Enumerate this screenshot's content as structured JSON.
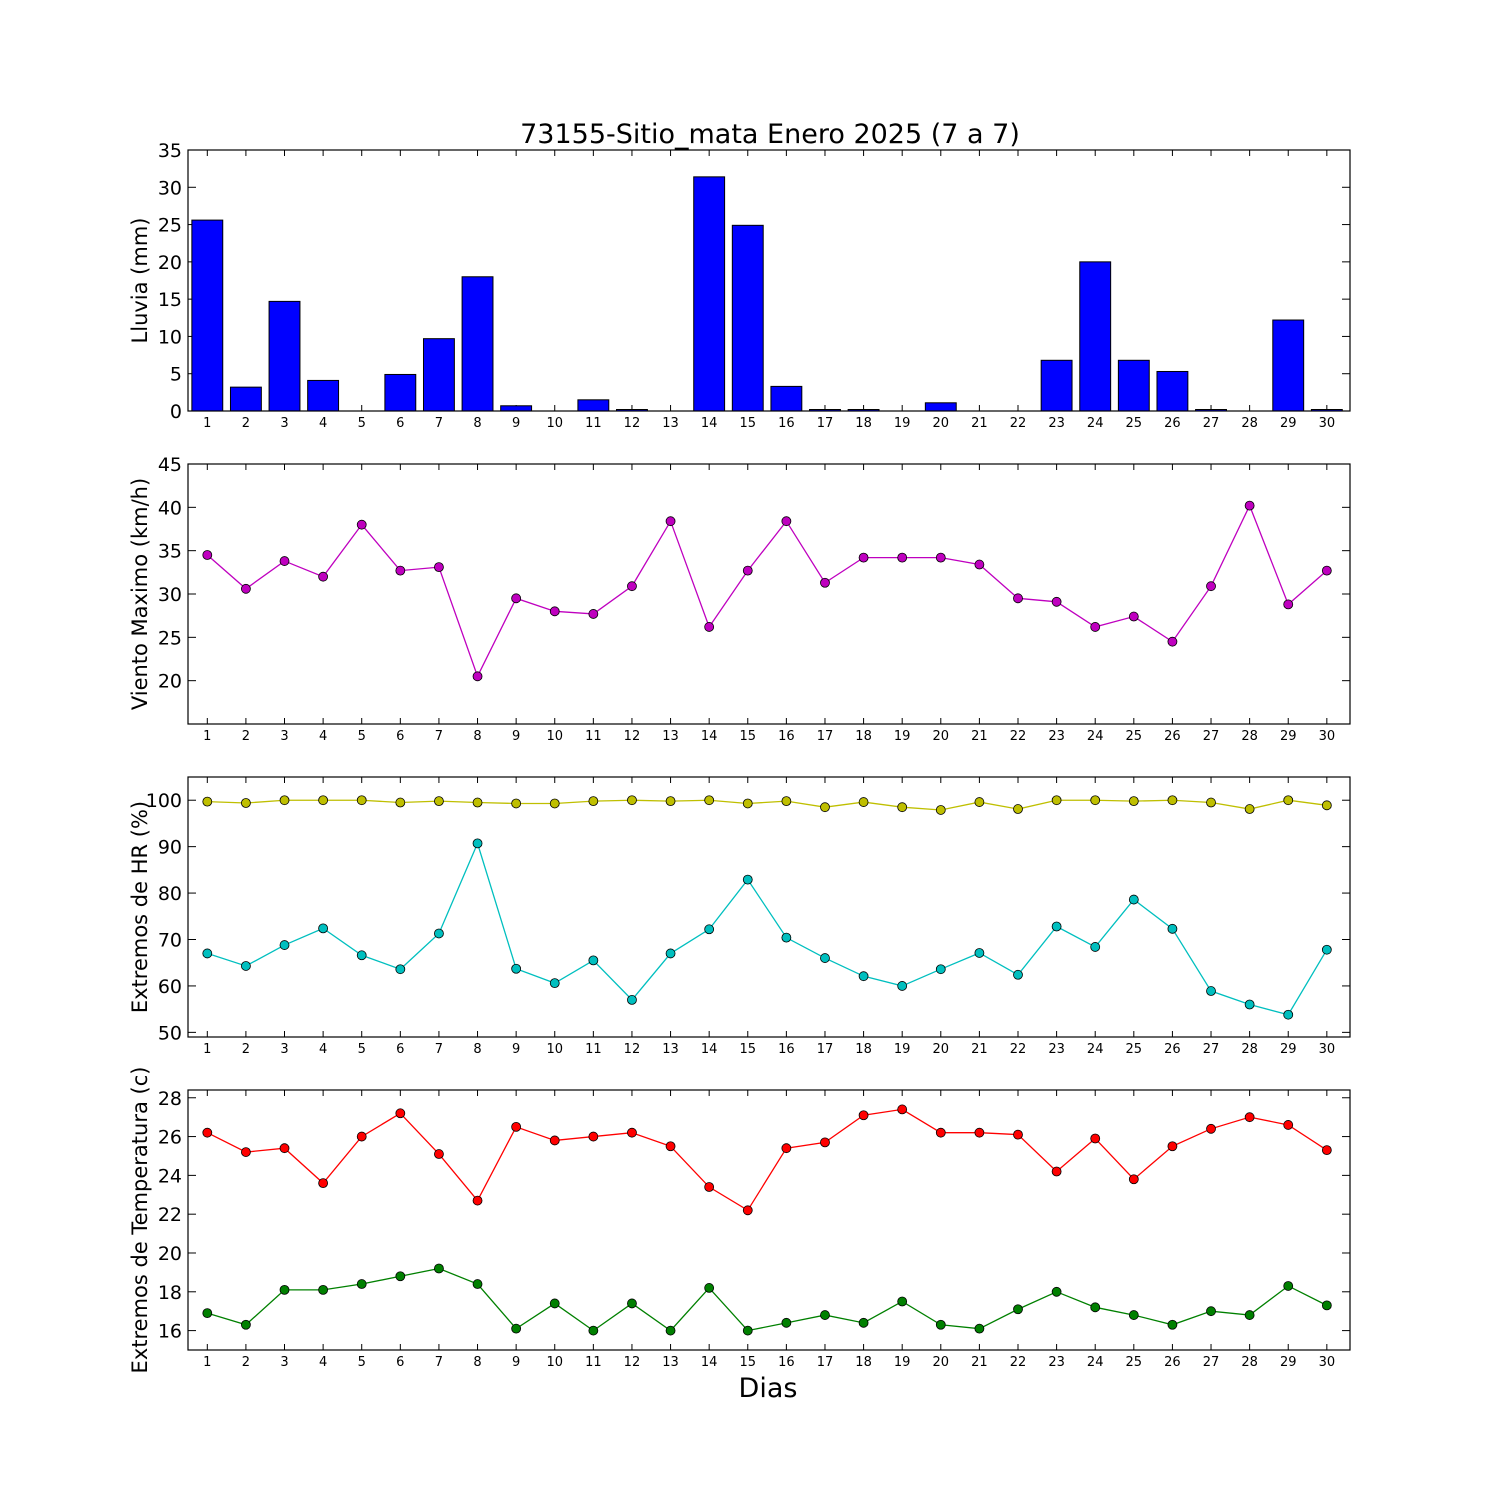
{
  "title": "73155-Sitio_mata Enero 2025  (7 a 7)",
  "xlabel": "Dias",
  "chart_data": [
    {
      "type": "bar",
      "ylabel": "Lluvia (mm)",
      "ylim": [
        0,
        35
      ],
      "yticks": [
        0,
        5,
        10,
        15,
        20,
        25,
        30,
        35
      ],
      "categories": [
        1,
        2,
        3,
        4,
        5,
        6,
        7,
        8,
        9,
        10,
        11,
        12,
        13,
        14,
        15,
        16,
        17,
        18,
        19,
        20,
        21,
        22,
        23,
        24,
        25,
        26,
        27,
        28,
        29,
        30
      ],
      "series": [
        {
          "color": "#0000ff",
          "values": [
            25.6,
            3.2,
            14.7,
            4.1,
            0,
            4.9,
            9.7,
            18.0,
            0.7,
            0,
            1.5,
            0.2,
            0,
            31.4,
            24.9,
            3.3,
            0.2,
            0.2,
            0,
            1.1,
            0,
            0,
            6.8,
            20.0,
            6.8,
            5.3,
            0.2,
            0,
            12.2,
            0.2
          ]
        }
      ]
    },
    {
      "type": "line",
      "ylabel": "Viento Maximo (km/h)",
      "ylim": [
        15,
        45
      ],
      "yticks": [
        20,
        25,
        30,
        35,
        40,
        45
      ],
      "categories": [
        1,
        2,
        3,
        4,
        5,
        6,
        7,
        8,
        9,
        10,
        11,
        12,
        13,
        14,
        15,
        16,
        17,
        18,
        19,
        20,
        21,
        22,
        23,
        24,
        25,
        26,
        27,
        28,
        29,
        30
      ],
      "series": [
        {
          "color": "#bf00bf",
          "values": [
            34.5,
            30.6,
            33.8,
            32.0,
            38.0,
            32.7,
            33.1,
            20.5,
            29.5,
            28.0,
            27.7,
            30.9,
            38.4,
            26.2,
            32.7,
            38.4,
            31.3,
            34.2,
            34.2,
            34.2,
            33.4,
            29.5,
            29.1,
            26.2,
            27.4,
            24.5,
            30.9,
            40.2,
            28.8,
            32.7
          ]
        }
      ]
    },
    {
      "type": "line",
      "ylabel": "Extremos de HR (%)",
      "ylim": [
        49,
        105
      ],
      "yticks": [
        50,
        60,
        70,
        80,
        90,
        100
      ],
      "categories": [
        1,
        2,
        3,
        4,
        5,
        6,
        7,
        8,
        9,
        10,
        11,
        12,
        13,
        14,
        15,
        16,
        17,
        18,
        19,
        20,
        21,
        22,
        23,
        24,
        25,
        26,
        27,
        28,
        29,
        30
      ],
      "series": [
        {
          "color": "#bfbf00",
          "values": [
            99.7,
            99.4,
            100,
            100,
            100,
            99.5,
            99.8,
            99.5,
            99.3,
            99.3,
            99.8,
            100,
            99.8,
            100,
            99.3,
            99.8,
            98.5,
            99.6,
            98.5,
            97.9,
            99.6,
            98.1,
            100,
            100,
            99.8,
            100,
            99.5,
            98.1,
            100,
            98.9
          ]
        },
        {
          "color": "#00bfbf",
          "values": [
            67.0,
            64.3,
            68.8,
            72.4,
            66.6,
            63.6,
            71.3,
            90.7,
            63.7,
            60.6,
            65.5,
            57.0,
            67.0,
            72.2,
            82.9,
            70.4,
            66.0,
            62.1,
            60.0,
            63.6,
            67.1,
            62.4,
            72.8,
            68.4,
            78.6,
            72.3,
            58.9,
            56.0,
            53.8,
            67.8
          ]
        }
      ]
    },
    {
      "type": "line",
      "ylabel": "Extremos de Temperatura (c)",
      "ylim": [
        15,
        28.4
      ],
      "yticks": [
        16,
        18,
        20,
        22,
        24,
        26,
        28
      ],
      "categories": [
        1,
        2,
        3,
        4,
        5,
        6,
        7,
        8,
        9,
        10,
        11,
        12,
        13,
        14,
        15,
        16,
        17,
        18,
        19,
        20,
        21,
        22,
        23,
        24,
        25,
        26,
        27,
        28,
        29,
        30
      ],
      "series": [
        {
          "color": "#ff0000",
          "values": [
            26.2,
            25.2,
            25.4,
            23.6,
            26.0,
            27.2,
            25.1,
            22.7,
            26.5,
            25.8,
            26.0,
            26.2,
            25.5,
            23.4,
            22.2,
            25.4,
            25.7,
            27.1,
            27.4,
            26.2,
            26.2,
            26.1,
            24.2,
            25.9,
            23.8,
            25.5,
            26.4,
            27.0,
            26.6,
            25.3
          ]
        },
        {
          "color": "#008000",
          "values": [
            16.9,
            16.3,
            18.1,
            18.1,
            18.4,
            18.8,
            19.2,
            18.4,
            16.1,
            17.4,
            16.0,
            17.4,
            16.0,
            18.2,
            16.0,
            16.4,
            16.8,
            16.4,
            17.5,
            16.3,
            16.1,
            17.1,
            18.0,
            17.2,
            16.8,
            16.3,
            17.0,
            16.8,
            18.3,
            17.3
          ]
        }
      ]
    }
  ]
}
